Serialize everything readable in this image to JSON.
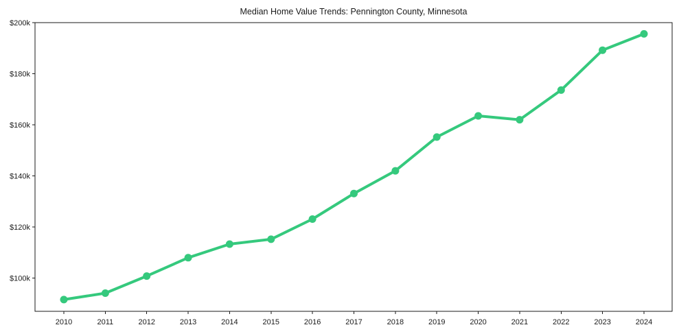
{
  "figure": {
    "background": "#ffffff"
  },
  "chart_data": {
    "type": "line",
    "title": "Median Home Value Trends: Pennington County, Minnesota",
    "xlabel": "",
    "ylabel": "",
    "categories": [
      "2010",
      "2011",
      "2012",
      "2013",
      "2014",
      "2015",
      "2016",
      "2017",
      "2018",
      "2019",
      "2020",
      "2021",
      "2022",
      "2023",
      "2024"
    ],
    "values": [
      91600,
      94100,
      100800,
      108000,
      113300,
      115200,
      123100,
      133100,
      142000,
      155200,
      163500,
      162000,
      173600,
      189200,
      195600
    ],
    "ylim": [
      87000,
      200000
    ],
    "yticks": [
      {
        "value": 100000,
        "label": "$100k"
      },
      {
        "value": 120000,
        "label": "$120k"
      },
      {
        "value": 140000,
        "label": "$140k"
      },
      {
        "value": 160000,
        "label": "$160k"
      },
      {
        "value": 180000,
        "label": "$180k"
      },
      {
        "value": 200000,
        "label": "$200k"
      }
    ],
    "grid": false,
    "legend": false,
    "line_color": "#35c97d",
    "marker_color": "#35c97d",
    "axis_color": "#1a1a1a",
    "text_color": "#1a1a1a"
  }
}
